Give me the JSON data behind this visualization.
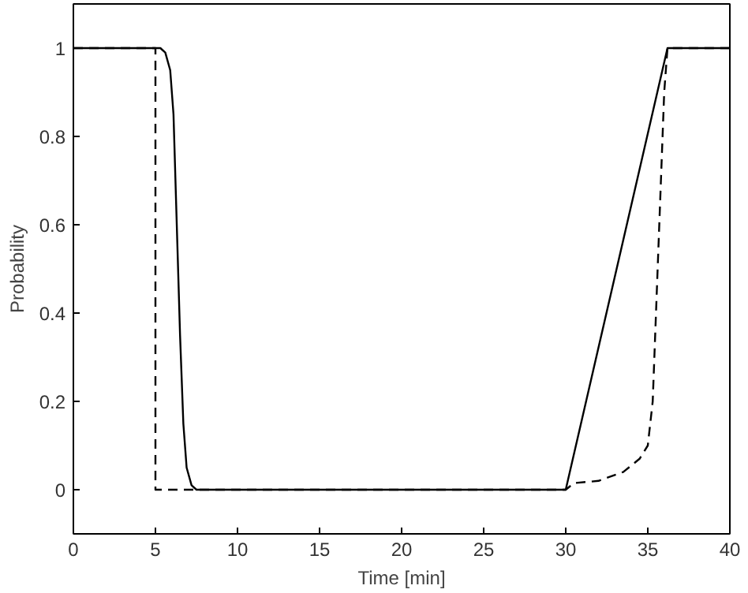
{
  "chart_data": {
    "type": "line",
    "xlabel": "Time [min]",
    "ylabel": "Probability",
    "xlim": [
      0,
      40
    ],
    "ylim": [
      -0.1,
      1.1
    ],
    "xticks": [
      0,
      5,
      10,
      15,
      20,
      25,
      30,
      35,
      40
    ],
    "yticks": [
      0,
      0.2,
      0.4,
      0.6,
      0.8,
      1
    ],
    "series": [
      {
        "color": "#000000",
        "line_style": "solid",
        "x": [
          0,
          5.3,
          5.6,
          5.9,
          6.1,
          6.3,
          6.5,
          6.7,
          6.9,
          7.2,
          7.5,
          30,
          36.2,
          40
        ],
        "values": [
          1,
          1,
          0.99,
          0.95,
          0.85,
          0.6,
          0.35,
          0.15,
          0.05,
          0.01,
          0,
          0,
          1,
          1
        ]
      },
      {
        "color": "#000000",
        "line_style": "dashed",
        "x": [
          0,
          5,
          5,
          7.5,
          30,
          30.5,
          32,
          33.5,
          34.5,
          35,
          35.3,
          35.5,
          35.8,
          36,
          36.2,
          40
        ],
        "values": [
          1,
          1,
          0,
          0,
          0,
          0.015,
          0.02,
          0.04,
          0.07,
          0.1,
          0.2,
          0.4,
          0.7,
          0.9,
          1,
          1
        ]
      }
    ]
  }
}
